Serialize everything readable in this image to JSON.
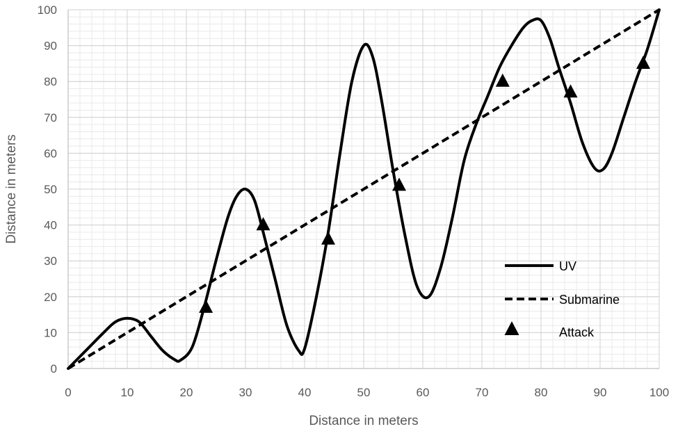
{
  "chart_data": {
    "type": "line",
    "title": "",
    "xlabel": "Distance in meters",
    "ylabel": "Distance in meters",
    "xlim": [
      0,
      100
    ],
    "ylim": [
      0,
      100
    ],
    "x_ticks": [
      0,
      10,
      20,
      30,
      40,
      50,
      60,
      70,
      80,
      90,
      100
    ],
    "y_ticks": [
      0,
      10,
      20,
      30,
      40,
      50,
      60,
      70,
      80,
      90,
      100
    ],
    "grid": true,
    "legend_position": "bottom-right",
    "series": [
      {
        "name": "UV",
        "style": "solid",
        "color": "#000000",
        "x": [
          0,
          3,
          6,
          8,
          10,
          12,
          14,
          16,
          18,
          19,
          21,
          23,
          25,
          27,
          28.5,
          30,
          31.5,
          33,
          35,
          37,
          39,
          40,
          42,
          44,
          46,
          48,
          50,
          51.5,
          53,
          55,
          57,
          59,
          61,
          63,
          65,
          67,
          69,
          71,
          73,
          75,
          77,
          78.5,
          80,
          81.5,
          83,
          85,
          87,
          89,
          90.5,
          92,
          94,
          96,
          98,
          100
        ],
        "y": [
          0,
          5,
          10,
          13,
          14,
          13,
          9,
          5,
          2.5,
          2.3,
          6,
          17,
          30,
          42,
          48,
          50,
          47,
          38,
          25,
          12,
          5,
          5.5,
          20,
          38,
          60,
          80,
          90,
          87,
          75,
          55,
          37,
          23,
          20,
          28,
          42,
          58,
          68,
          76,
          84,
          90,
          95,
          97,
          97,
          92,
          84,
          74,
          63,
          56,
          55.5,
          60,
          70,
          80,
          89,
          100
        ]
      },
      {
        "name": "Submarine",
        "style": "dashed",
        "color": "#000000",
        "x": [
          0,
          100
        ],
        "y": [
          0,
          100
        ]
      },
      {
        "name": "Attack",
        "style": "marker-triangle",
        "color": "#000000",
        "x": [
          23.3,
          33,
          44,
          56,
          73.5,
          85,
          97.3
        ],
        "y": [
          17,
          40,
          36,
          51,
          80,
          77,
          85
        ]
      }
    ]
  }
}
